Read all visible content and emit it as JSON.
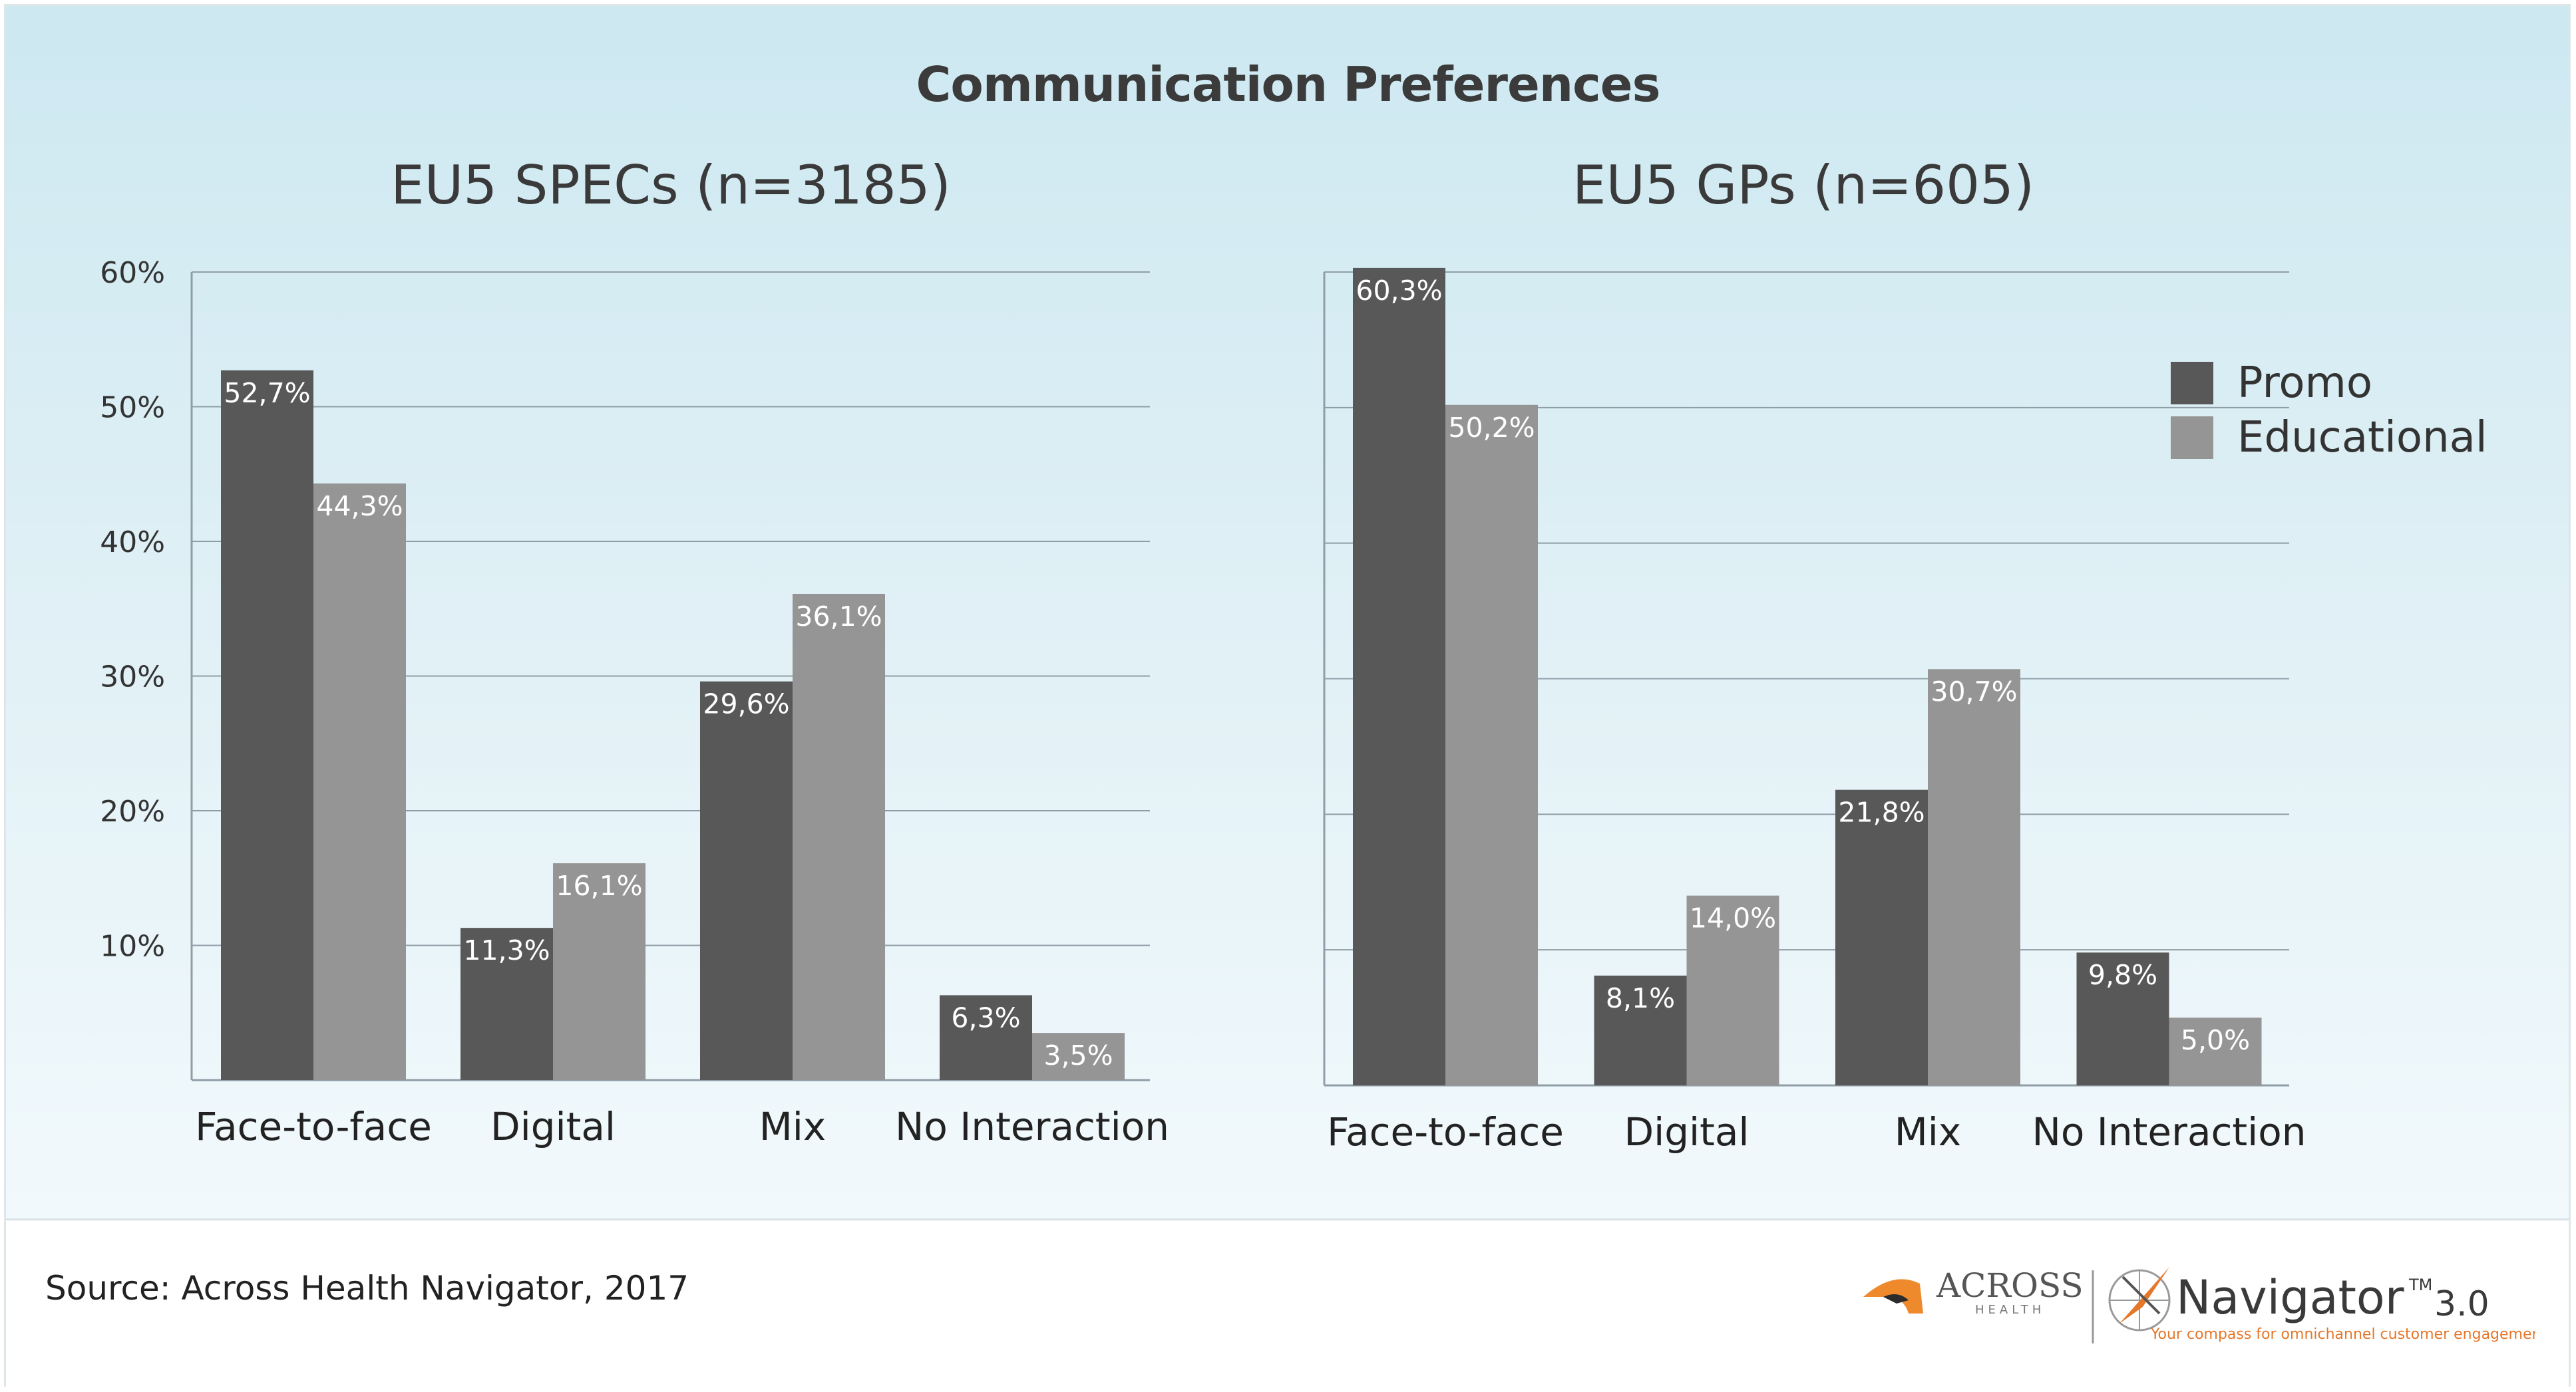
{
  "title": "Communication Preferences",
  "legend": [
    {
      "label": "Promo",
      "color": "#585858"
    },
    {
      "label": "Educational",
      "color": "#959595"
    }
  ],
  "source": "Source: Across Health Navigator, 2017",
  "logos": {
    "across": "ACROSS",
    "across_sub": "HEALTH",
    "navigator": "Navigator",
    "tm": "TM",
    "version": "3.0",
    "tagline": "Your compass for omnichannel customer engagement"
  },
  "chart_data": [
    {
      "type": "bar",
      "title": "EU5 SPECs (n=3185)",
      "categories": [
        "Face-to-face",
        "Digital",
        "Mix",
        "No Interaction"
      ],
      "series": [
        {
          "name": "Promo",
          "values": [
            52.7,
            11.3,
            29.6,
            6.3
          ],
          "labels": [
            "52,7%",
            "11,3%",
            "29,6%",
            "6,3%"
          ]
        },
        {
          "name": "Educational",
          "values": [
            44.3,
            16.1,
            36.1,
            3.5
          ],
          "labels": [
            "44,3%",
            "16,1%",
            "36,1%",
            "3,5%"
          ]
        }
      ],
      "ylim": [
        0,
        60
      ],
      "yticks": [
        {
          "value": 10,
          "label": "10%"
        },
        {
          "value": 20,
          "label": "20%"
        },
        {
          "value": 30,
          "label": "30%"
        },
        {
          "value": 40,
          "label": "40%"
        },
        {
          "value": 50,
          "label": "50%"
        },
        {
          "value": 60,
          "label": "60%"
        }
      ],
      "grid": true
    },
    {
      "type": "bar",
      "title": "EU5 GPs (n=605)",
      "categories": [
        "Face-to-face",
        "Digital",
        "Mix",
        "No Interaction"
      ],
      "series": [
        {
          "name": "Promo",
          "values": [
            60.3,
            8.1,
            21.8,
            9.8
          ],
          "labels": [
            "60,3%",
            "8,1%",
            "21,8%",
            "9,8%"
          ]
        },
        {
          "name": "Educational",
          "values": [
            50.2,
            14.0,
            30.7,
            5.0
          ],
          "labels": [
            "50,2%",
            "14,0%",
            "30,7%",
            "5,0%"
          ]
        }
      ],
      "ylim": [
        0,
        60
      ],
      "yticks": [],
      "grid": true
    }
  ]
}
